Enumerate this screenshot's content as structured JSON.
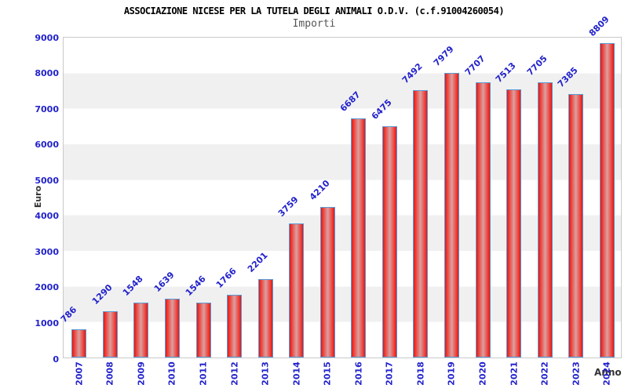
{
  "header": {
    "title": "ASSOCIAZIONE NICESE PER LA TUTELA DEGLI ANIMALI O.D.V. (c.f.91004260054)",
    "subtitle": "Importi"
  },
  "chart_data": {
    "type": "bar",
    "title": "ASSOCIAZIONE NICESE PER LA TUTELA DEGLI ANIMALI O.D.V. (c.f.91004260054)",
    "subtitle": "Importi",
    "categories": [
      "2007",
      "2008",
      "2009",
      "2010",
      "2011",
      "2012",
      "2013",
      "2014",
      "2015",
      "2016",
      "2017",
      "2018",
      "2019",
      "2020",
      "2021",
      "2022",
      "2023",
      "2024"
    ],
    "values": [
      786,
      1290,
      1548,
      1639,
      1546,
      1766,
      2201,
      3759,
      4210,
      6687,
      6475,
      7492,
      7979,
      7707,
      7513,
      7705,
      7385,
      8809
    ],
    "xlabel": "Anno",
    "ylabel": "Euro",
    "ylim": [
      0,
      9000
    ],
    "ytick_step": 1000,
    "grid": "horizontal-bands-alternating",
    "legend": "none",
    "bar_value_labels": "rotated-45-above-bars",
    "xtick_labels": "rotated-90-vertical"
  },
  "colors": {
    "background": "#ffffff",
    "title_text": "#000000",
    "subtitle_text": "#555555",
    "axis_text": "#2222cc",
    "axis_label_text": "#333333",
    "band": "#f0f0f0",
    "plot_border": "#c9c9c9",
    "bar_border": "#5a9bd5",
    "bar_fill_edge": "#e01812",
    "bar_fill_mid": "#ee3b35",
    "bar_fill_center": "#dba0a0"
  }
}
